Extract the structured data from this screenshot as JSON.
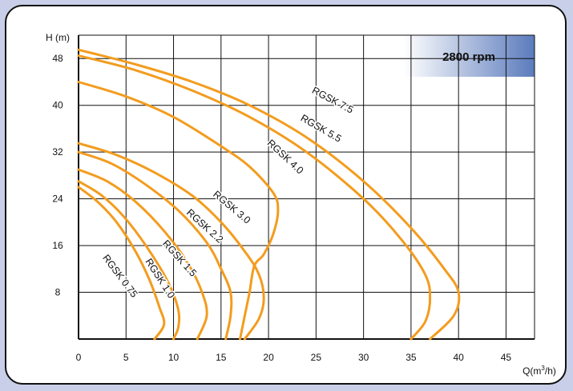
{
  "chart_data": {
    "type": "line",
    "title": "",
    "banner": "2800 rpm",
    "colors": {
      "curve": "#f39c1e",
      "banner_from": "#ffffff",
      "banner_to": "#5b7bbd",
      "grid": "#111111",
      "page_bg": "#c9cfe8"
    },
    "xlabel_main": "Q(m",
    "xlabel_sup": "3",
    "xlabel_tail": "/h)",
    "ylabel": "H (m)",
    "xlim": [
      0,
      48
    ],
    "ylim": [
      0,
      52
    ],
    "grid": true,
    "x_ticks": [
      {
        "v": 0,
        "label": "0"
      },
      {
        "v": 5,
        "label": "5"
      },
      {
        "v": 10,
        "label": "10"
      },
      {
        "v": 15,
        "label": "15"
      },
      {
        "v": 20,
        "label": "20"
      },
      {
        "v": 25,
        "label": "25"
      },
      {
        "v": 30,
        "label": "30"
      },
      {
        "v": 35,
        "label": "35"
      },
      {
        "v": 40,
        "label": "40"
      },
      {
        "v": 45,
        "label": "45"
      }
    ],
    "y_ticks": [
      {
        "v": 8,
        "label": "8"
      },
      {
        "v": 16,
        "label": "16"
      },
      {
        "v": 24,
        "label": "24"
      },
      {
        "v": 32,
        "label": "32"
      },
      {
        "v": 40,
        "label": "40"
      },
      {
        "v": 48,
        "label": "48"
      }
    ],
    "series": [
      {
        "name": "RGSK 7.5",
        "points": [
          [
            0,
            49.5
          ],
          [
            6,
            47
          ],
          [
            12,
            44
          ],
          [
            18,
            40
          ],
          [
            24,
            34.5
          ],
          [
            30,
            27
          ],
          [
            35,
            19
          ],
          [
            38.5,
            12
          ],
          [
            40,
            8
          ],
          [
            39.5,
            4
          ],
          [
            37,
            0
          ]
        ]
      },
      {
        "name": "RGSK 5.5",
        "points": [
          [
            0,
            48.5
          ],
          [
            6,
            46
          ],
          [
            12,
            42.5
          ],
          [
            18,
            38
          ],
          [
            24,
            32
          ],
          [
            30,
            24
          ],
          [
            34,
            17
          ],
          [
            36.5,
            11
          ],
          [
            37,
            7
          ],
          [
            36.5,
            3
          ],
          [
            35,
            0
          ]
        ]
      },
      {
        "name": "RGSK 4.0",
        "points": [
          [
            0,
            44
          ],
          [
            5,
            41.5
          ],
          [
            10,
            38
          ],
          [
            15,
            33
          ],
          [
            18,
            29.5
          ],
          [
            20.5,
            25
          ],
          [
            21,
            22
          ],
          [
            20.5,
            18
          ],
          [
            19.5,
            14.5
          ],
          [
            18.5,
            12.5
          ],
          [
            18,
            8
          ],
          [
            17.5,
            4
          ],
          [
            17,
            0
          ]
        ]
      },
      {
        "name": "RGSK 3.0",
        "points": [
          [
            0,
            33.5
          ],
          [
            4,
            31.5
          ],
          [
            8,
            28.5
          ],
          [
            12,
            24.5
          ],
          [
            15,
            20
          ],
          [
            17.5,
            15
          ],
          [
            19,
            11
          ],
          [
            19.5,
            7
          ],
          [
            19,
            3.5
          ],
          [
            17.5,
            0
          ]
        ]
      },
      {
        "name": "RGSK 2.2",
        "points": [
          [
            0,
            32
          ],
          [
            3.5,
            30
          ],
          [
            7,
            26.5
          ],
          [
            10.5,
            22
          ],
          [
            13.5,
            16.5
          ],
          [
            15,
            12
          ],
          [
            16,
            8
          ],
          [
            16,
            4
          ],
          [
            15.5,
            0
          ]
        ]
      },
      {
        "name": "RGSK 1.5",
        "points": [
          [
            0,
            29
          ],
          [
            3,
            27
          ],
          [
            6,
            23.5
          ],
          [
            9,
            18.5
          ],
          [
            11.5,
            13
          ],
          [
            13,
            8
          ],
          [
            13.5,
            4
          ],
          [
            12.5,
            0
          ]
        ]
      },
      {
        "name": "RGSK 1.0",
        "points": [
          [
            0,
            27
          ],
          [
            2.5,
            24.5
          ],
          [
            5,
            20.5
          ],
          [
            7.5,
            15
          ],
          [
            9.5,
            9.5
          ],
          [
            10.5,
            5
          ],
          [
            10.5,
            2
          ],
          [
            10,
            0
          ]
        ]
      },
      {
        "name": "RGSK 0.75",
        "points": [
          [
            0,
            26
          ],
          [
            2,
            23.5
          ],
          [
            4,
            20
          ],
          [
            6,
            15
          ],
          [
            7.5,
            10
          ],
          [
            8.5,
            5.5
          ],
          [
            9,
            2.5
          ],
          [
            8,
            0
          ]
        ]
      }
    ],
    "curve_labels": [
      {
        "text": "RGSK 7.5",
        "x": 24.5,
        "y": 42.2,
        "rot": 28
      },
      {
        "text": "RGSK 5.5",
        "x": 23.3,
        "y": 37.5,
        "rot": 30
      },
      {
        "text": "RGSK 4.0",
        "x": 19.8,
        "y": 33.4,
        "rot": 43
      },
      {
        "text": "RGSK 3.0",
        "x": 14.1,
        "y": 24.6,
        "rot": 40
      },
      {
        "text": "RGSK 2.2",
        "x": 11.3,
        "y": 21.5,
        "rot": 42
      },
      {
        "text": "RGSK 1.5",
        "x": 8.8,
        "y": 16.3,
        "rot": 48
      },
      {
        "text": "RGSK 1.0",
        "x": 7.0,
        "y": 13.3,
        "rot": 57
      },
      {
        "text": "RGSK 0.75",
        "x": 2.5,
        "y": 13.9,
        "rot": 53
      }
    ]
  }
}
